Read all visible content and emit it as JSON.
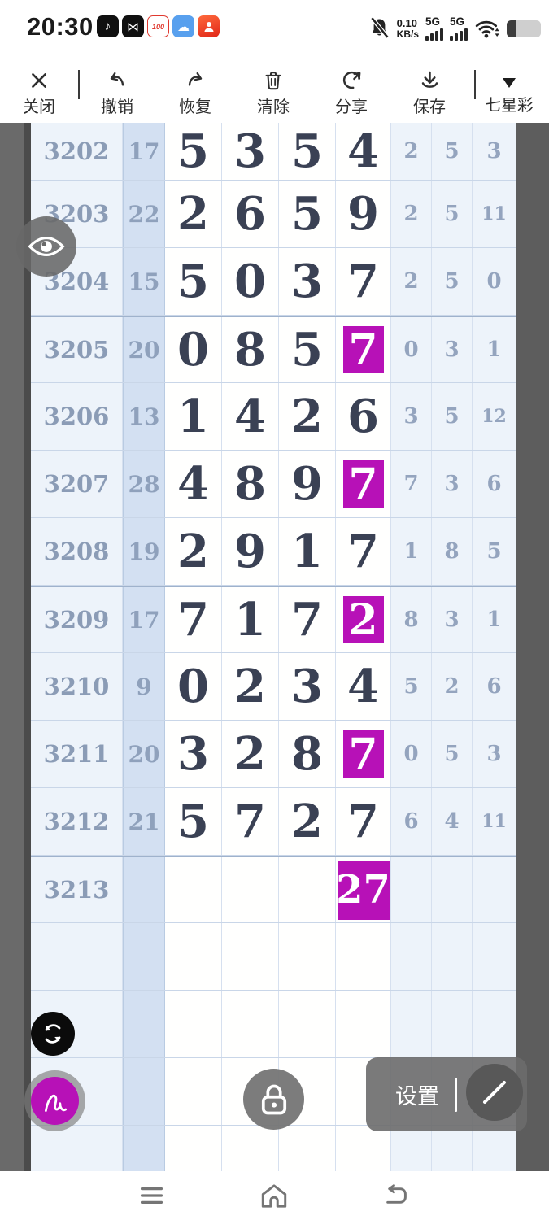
{
  "status_bar": {
    "time": "20:30",
    "speed_value": "0.10",
    "speed_unit": "KB/s",
    "sim1_label": "5G",
    "sim2_label": "5G",
    "battery_percent": 25,
    "app_icons": [
      "douyin",
      "capcut",
      "score-100",
      "weather-cloud",
      "red-media"
    ]
  },
  "toolbar": {
    "close_label": "关闭",
    "undo_label": "撤销",
    "redo_label": "恢复",
    "clear_label": "清除",
    "share_label": "分享",
    "save_label": "保存",
    "game_label": "七星彩"
  },
  "floating": {
    "settings_label": "设置"
  },
  "colors": {
    "highlight_magenta": "#b711b7",
    "digit_text": "#3a4154",
    "muted_blue_text": "#8fa0ba",
    "sum_column_bg": "#d3e0f2",
    "light_column_bg": "#edf3fa",
    "side_band": "#5d5d5d"
  },
  "table": {
    "rows": [
      {
        "period": "3202",
        "sum": "17",
        "digits": [
          "5",
          "3",
          "5",
          "4"
        ],
        "extras": [
          "2",
          "5",
          "3"
        ],
        "highlight": -1
      },
      {
        "period": "3203",
        "sum": "22",
        "digits": [
          "2",
          "6",
          "5",
          "9"
        ],
        "extras": [
          "2",
          "5",
          "11"
        ],
        "highlight": -1
      },
      {
        "period": "3204",
        "sum": "15",
        "digits": [
          "5",
          "0",
          "3",
          "7"
        ],
        "extras": [
          "2",
          "5",
          "0"
        ],
        "highlight": -1
      },
      {
        "period": "3205",
        "sum": "20",
        "digits": [
          "0",
          "8",
          "5",
          "7"
        ],
        "extras": [
          "0",
          "3",
          "1"
        ],
        "highlight": 3,
        "group_start": true
      },
      {
        "period": "3206",
        "sum": "13",
        "digits": [
          "1",
          "4",
          "2",
          "6"
        ],
        "extras": [
          "3",
          "5",
          "12"
        ],
        "highlight": -1
      },
      {
        "period": "3207",
        "sum": "28",
        "digits": [
          "4",
          "8",
          "9",
          "7"
        ],
        "extras": [
          "7",
          "3",
          "6"
        ],
        "highlight": 3
      },
      {
        "period": "3208",
        "sum": "19",
        "digits": [
          "2",
          "9",
          "1",
          "7"
        ],
        "extras": [
          "1",
          "8",
          "5"
        ],
        "highlight": -1
      },
      {
        "period": "3209",
        "sum": "17",
        "digits": [
          "7",
          "1",
          "7",
          "2"
        ],
        "extras": [
          "8",
          "3",
          "1"
        ],
        "highlight": 3,
        "group_start": true
      },
      {
        "period": "3210",
        "sum": "9",
        "digits": [
          "0",
          "2",
          "3",
          "4"
        ],
        "extras": [
          "5",
          "2",
          "6"
        ],
        "highlight": -1
      },
      {
        "period": "3211",
        "sum": "20",
        "digits": [
          "3",
          "2",
          "8",
          "7"
        ],
        "extras": [
          "0",
          "5",
          "3"
        ],
        "highlight": 3
      },
      {
        "period": "3212",
        "sum": "21",
        "digits": [
          "5",
          "7",
          "2",
          "7"
        ],
        "extras": [
          "6",
          "4",
          "11"
        ],
        "highlight": -1
      },
      {
        "period": "3213",
        "sum": "",
        "digits": [
          "",
          "",
          "",
          "27"
        ],
        "extras": [
          "",
          "",
          ""
        ],
        "highlight": 3,
        "big_highlight": true,
        "group_start": true
      }
    ],
    "empty_row_count": 4
  }
}
